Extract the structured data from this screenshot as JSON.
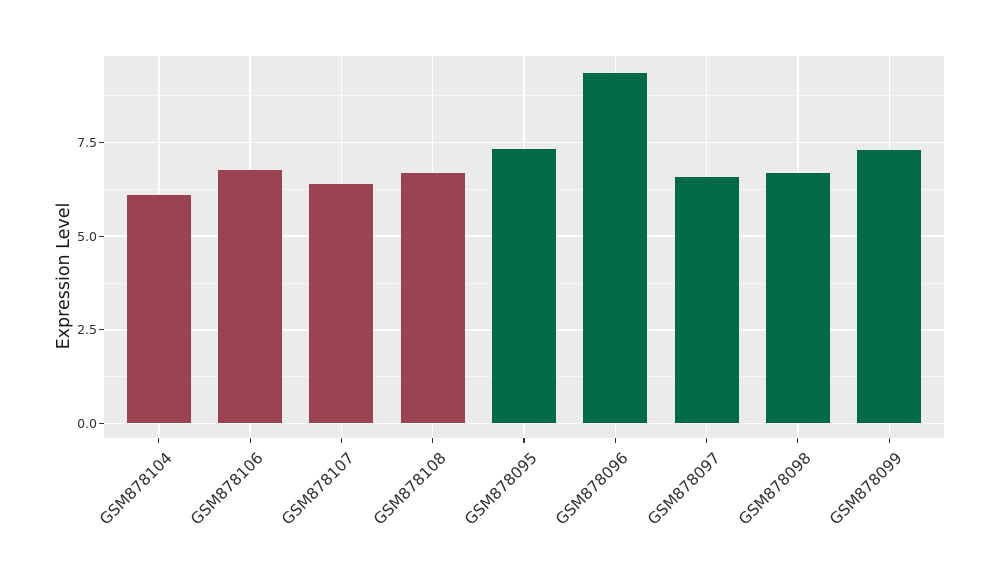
{
  "chart_data": {
    "type": "bar",
    "title": "",
    "xlabel": "",
    "ylabel": "Expression Level",
    "categories": [
      "GSM878104",
      "GSM878106",
      "GSM878107",
      "GSM878108",
      "GSM878095",
      "GSM878096",
      "GSM878097",
      "GSM878098",
      "GSM878099"
    ],
    "values": [
      6.1,
      6.78,
      6.4,
      6.7,
      7.33,
      9.35,
      6.59,
      6.69,
      7.3
    ],
    "bar_colors": [
      "#9A4351",
      "#9A4351",
      "#9A4351",
      "#9A4351",
      "#026B46",
      "#026B46",
      "#026B46",
      "#026B46",
      "#026B46"
    ],
    "ytick_labels": [
      "0.0",
      "2.5",
      "5.0",
      "7.5"
    ],
    "ytick_values": [
      0,
      2.5,
      5.0,
      7.5
    ],
    "yminor_values": [
      1.25,
      3.75,
      6.25,
      8.75
    ],
    "ylim": [
      -0.39,
      9.81
    ],
    "bar_width_frac": 0.7,
    "grid": true,
    "legend": "none",
    "colors": {
      "panel_background": "#EBEBEB",
      "grid_major": "#FFFFFF",
      "grid_minor": "rgba(255,255,255,0.55)",
      "tick_mark": "#333333",
      "tick_text": "#303030",
      "axis_title_text": "#1A1A1A",
      "figure_background": "#FFFFFF"
    }
  }
}
